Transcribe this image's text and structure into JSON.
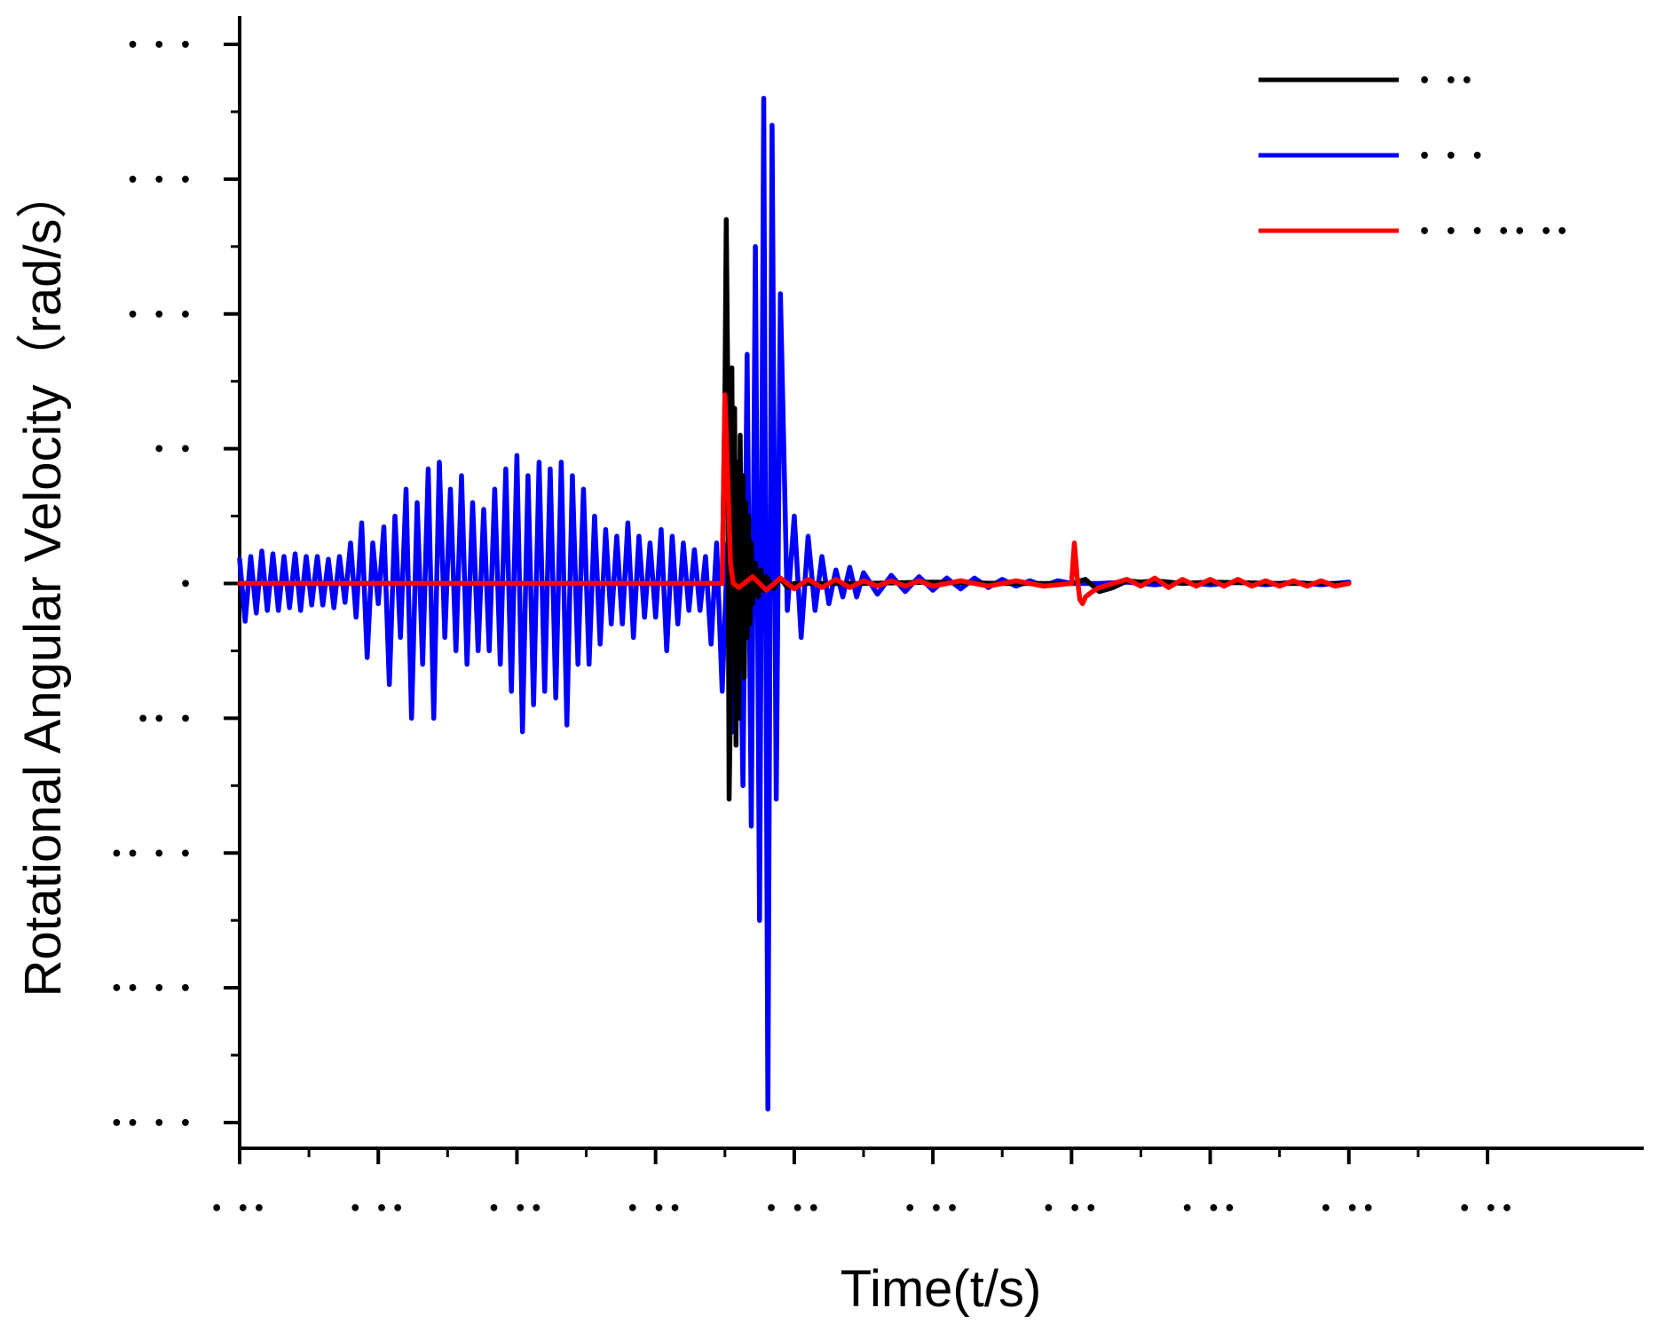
{
  "chart_data": {
    "type": "line",
    "xlabel": "Time(t/s)",
    "ylabel": "Rotational Angular Velocity（rad/s）",
    "xlim": [
      0,
      9
    ],
    "ylim": [
      -4,
      4
    ],
    "x_ticks": [
      0,
      1,
      2,
      3,
      4,
      5,
      6,
      7,
      8,
      9
    ],
    "x_tick_labels": [
      "• ••",
      "• ••",
      "• ••",
      "• ••",
      "• ••",
      "• ••",
      "• ••",
      "• ••",
      "• ••",
      "• ••"
    ],
    "y_ticks": [
      4,
      3,
      2,
      1,
      0,
      -1,
      -2,
      -3,
      -4
    ],
    "y_tick_labels": [
      "• • •",
      "• • •",
      "• • •",
      "• •",
      "•",
      "•• •",
      "•• • •",
      "•• • •",
      "•• • •"
    ],
    "grid": false,
    "legend_position": "top-right",
    "series": [
      {
        "name": "•  ••",
        "color": "#000000",
        "x": [
          0,
          3.48,
          3.5,
          3.51,
          3.52,
          3.53,
          3.54,
          3.55,
          3.56,
          3.57,
          3.58,
          3.59,
          3.6,
          3.61,
          3.62,
          3.63,
          3.64,
          3.65,
          3.66,
          3.67,
          3.68,
          3.69,
          3.7,
          3.72,
          3.74,
          3.76,
          3.78,
          3.8,
          3.85,
          3.9,
          3.95,
          4.0,
          4.5,
          5.0,
          5.5,
          6.0,
          6.1,
          6.2,
          6.3,
          6.4,
          6.5,
          6.6,
          6.8,
          7.0,
          7.5,
          8.0
        ],
        "y": [
          0,
          0,
          1.4,
          2.7,
          1.5,
          -1.6,
          -0.9,
          1.6,
          -0.4,
          1.3,
          -1.2,
          0.9,
          -1.0,
          1.1,
          -0.6,
          0.8,
          -0.7,
          0.6,
          -0.4,
          0.5,
          -0.3,
          0.3,
          -0.15,
          0.15,
          -0.1,
          0.1,
          -0.05,
          0.05,
          -0.04,
          0.04,
          -0.03,
          0,
          0,
          0.01,
          0,
          0,
          0.03,
          -0.06,
          -0.03,
          0.02,
          0.01,
          0.02,
          0.0,
          0.01,
          0,
          0
        ]
      },
      {
        "name": "•  •   •",
        "color": "#0000ff",
        "x": [
          0,
          0.04,
          0.08,
          0.12,
          0.16,
          0.2,
          0.24,
          0.28,
          0.32,
          0.36,
          0.4,
          0.44,
          0.48,
          0.52,
          0.56,
          0.6,
          0.64,
          0.68,
          0.72,
          0.76,
          0.8,
          0.84,
          0.88,
          0.92,
          0.96,
          1.0,
          1.04,
          1.08,
          1.12,
          1.16,
          1.2,
          1.24,
          1.28,
          1.32,
          1.36,
          1.4,
          1.44,
          1.48,
          1.52,
          1.56,
          1.6,
          1.64,
          1.68,
          1.72,
          1.76,
          1.8,
          1.84,
          1.88,
          1.92,
          1.96,
          2.0,
          2.04,
          2.08,
          2.12,
          2.16,
          2.2,
          2.24,
          2.28,
          2.32,
          2.36,
          2.4,
          2.44,
          2.48,
          2.52,
          2.56,
          2.6,
          2.64,
          2.68,
          2.72,
          2.76,
          2.8,
          2.84,
          2.88,
          2.92,
          2.96,
          3.0,
          3.04,
          3.08,
          3.12,
          3.16,
          3.2,
          3.24,
          3.28,
          3.32,
          3.36,
          3.4,
          3.44,
          3.48,
          3.52,
          3.56,
          3.6,
          3.63,
          3.66,
          3.69,
          3.72,
          3.75,
          3.78,
          3.81,
          3.84,
          3.87,
          3.9,
          3.95,
          4.0,
          4.05,
          4.1,
          4.15,
          4.2,
          4.25,
          4.3,
          4.35,
          4.4,
          4.45,
          4.5,
          4.6,
          4.7,
          4.8,
          4.9,
          5.0,
          5.1,
          5.2,
          5.3,
          5.4,
          5.5,
          5.6,
          5.7,
          5.8,
          5.9,
          6.0,
          6.2,
          6.4,
          6.6,
          6.8,
          7.0,
          7.2,
          7.4,
          7.6,
          7.8,
          8.0
        ],
        "y": [
          0.18,
          -0.28,
          0.2,
          -0.22,
          0.24,
          -0.2,
          0.22,
          -0.2,
          0.2,
          -0.18,
          0.22,
          -0.2,
          0.2,
          -0.16,
          0.2,
          -0.16,
          0.18,
          -0.18,
          0.2,
          -0.14,
          0.3,
          -0.25,
          0.45,
          -0.55,
          0.3,
          -0.15,
          0.42,
          -0.75,
          0.5,
          -0.4,
          0.7,
          -1.0,
          0.6,
          -0.6,
          0.85,
          -1.0,
          0.9,
          -0.4,
          0.7,
          -0.5,
          0.8,
          -0.6,
          0.6,
          -0.5,
          0.55,
          -0.5,
          0.7,
          -0.6,
          0.85,
          -0.8,
          0.95,
          -1.1,
          0.8,
          -0.9,
          0.9,
          -0.8,
          0.85,
          -0.85,
          0.9,
          -1.05,
          0.8,
          -0.6,
          0.7,
          -0.6,
          0.5,
          -0.45,
          0.4,
          -0.3,
          0.35,
          -0.3,
          0.45,
          -0.4,
          0.35,
          -0.25,
          0.3,
          -0.25,
          0.4,
          -0.5,
          0.35,
          -0.3,
          0.3,
          -0.2,
          0.25,
          -0.2,
          0.2,
          -0.45,
          0.3,
          -0.8,
          0.3,
          -1.1,
          0.45,
          -1.5,
          1.7,
          -1.8,
          2.5,
          -2.5,
          3.6,
          -3.9,
          3.4,
          -1.6,
          2.15,
          -0.2,
          0.5,
          -0.4,
          0.35,
          -0.2,
          0.2,
          -0.15,
          0.1,
          -0.1,
          0.12,
          -0.1,
          0.08,
          -0.08,
          0.06,
          -0.06,
          0.05,
          -0.05,
          0.04,
          -0.04,
          0.04,
          -0.03,
          0.03,
          -0.02,
          0.02,
          -0.02,
          0.02,
          0.0,
          0.0,
          0.01,
          -0.01,
          0.01,
          -0.01,
          0.01,
          -0.01,
          0.01,
          -0.01,
          0.01
        ]
      },
      {
        "name": "•  •   •  ••  ••",
        "color": "#ff0000",
        "x": [
          0,
          3.48,
          3.5,
          3.52,
          3.54,
          3.56,
          3.6,
          3.7,
          3.8,
          3.9,
          4.0,
          4.1,
          4.2,
          4.3,
          4.4,
          4.5,
          4.6,
          4.7,
          4.8,
          4.9,
          5.0,
          5.2,
          5.4,
          5.6,
          5.8,
          6.0,
          6.02,
          6.04,
          6.06,
          6.08,
          6.1,
          6.15,
          6.2,
          6.3,
          6.4,
          6.5,
          6.6,
          6.7,
          6.8,
          6.9,
          7.0,
          7.1,
          7.2,
          7.3,
          7.4,
          7.5,
          7.6,
          7.7,
          7.8,
          7.9,
          8.0
        ],
        "y": [
          0,
          0,
          1.4,
          0.8,
          0.15,
          0.0,
          -0.03,
          0.05,
          -0.05,
          0.04,
          -0.04,
          0.03,
          -0.03,
          0.03,
          -0.03,
          0.02,
          -0.02,
          0.02,
          -0.02,
          0.02,
          -0.02,
          0.02,
          -0.02,
          0.02,
          -0.02,
          0.0,
          0.3,
          0.05,
          -0.12,
          -0.15,
          -0.1,
          -0.06,
          -0.03,
          0.0,
          0.03,
          -0.02,
          0.04,
          -0.03,
          0.03,
          -0.02,
          0.03,
          -0.02,
          0.03,
          -0.02,
          0.02,
          -0.02,
          0.02,
          -0.02,
          0.02,
          -0.02,
          0.0
        ]
      }
    ]
  }
}
